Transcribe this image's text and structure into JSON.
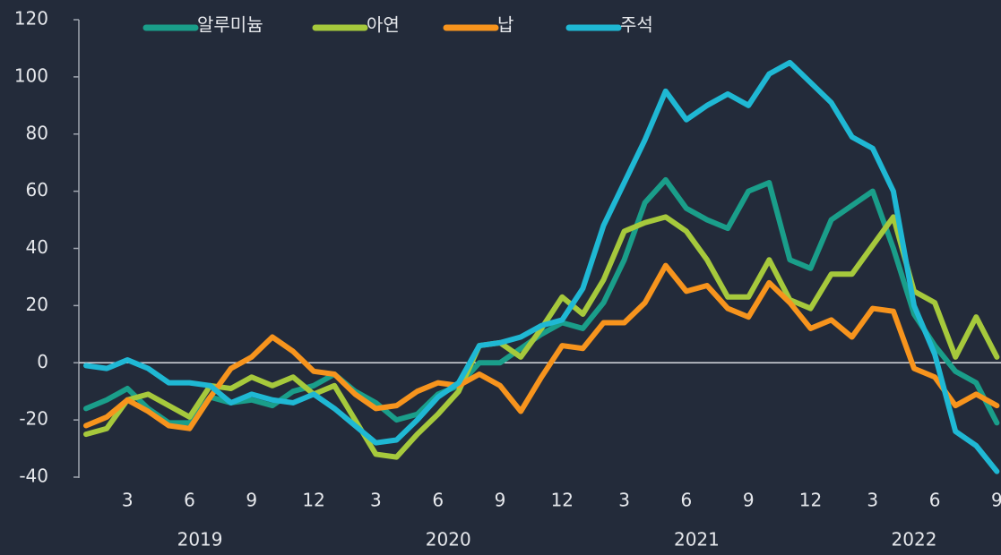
{
  "chart_data": {
    "type": "line",
    "categories": [
      null,
      null,
      "3",
      null,
      null,
      "6",
      null,
      null,
      "9",
      null,
      null,
      "12",
      null,
      null,
      "3",
      null,
      null,
      "6",
      null,
      null,
      "9",
      null,
      null,
      "12",
      null,
      null,
      "3",
      null,
      null,
      "6",
      null,
      null,
      "9",
      null,
      null,
      "12",
      null,
      null,
      "3",
      null,
      null,
      "6",
      null,
      null,
      "9"
    ],
    "x_groups": [
      "2019",
      "2020",
      "2021",
      "2022"
    ],
    "series": [
      {
        "name": "알루미늄",
        "color": "#1a9e8a",
        "values": [
          -16,
          -13,
          -9,
          -16,
          -21,
          -21,
          -12,
          -14,
          -13,
          -15,
          -10,
          -8,
          -4,
          -10,
          -14,
          -20,
          -18,
          -11,
          -8,
          0,
          0,
          5,
          10,
          14,
          12,
          21,
          36,
          56,
          64,
          54,
          50,
          47,
          60,
          63,
          36,
          33,
          50,
          55,
          60,
          40,
          17,
          6,
          -3,
          -7,
          -21
        ]
      },
      {
        "name": "아연",
        "color": "#a6c93c",
        "values": [
          -25,
          -23,
          -13,
          -11,
          -15,
          -19,
          -8,
          -9,
          -5,
          -8,
          -5,
          -11,
          -8,
          -20,
          -32,
          -33,
          -25,
          -18,
          -10,
          6,
          7,
          2,
          12,
          23,
          17,
          29,
          46,
          49,
          51,
          46,
          36,
          23,
          23,
          36,
          22,
          19,
          31,
          31,
          41,
          51,
          25,
          21,
          2,
          16,
          2
        ]
      },
      {
        "name": "납",
        "color": "#f7941d",
        "values": [
          -22,
          -19,
          -13,
          -17,
          -22,
          -23,
          -12,
          -2,
          2,
          9,
          4,
          -3,
          -4,
          -11,
          -16,
          -15,
          -10,
          -7,
          -8,
          -4,
          -8,
          -17,
          -5,
          6,
          5,
          14,
          14,
          21,
          34,
          25,
          27,
          19,
          16,
          28,
          21,
          12,
          15,
          9,
          19,
          18,
          -2,
          -5,
          -15,
          -11,
          -15
        ]
      },
      {
        "name": "주석",
        "color": "#1fb8d4",
        "values": [
          -1,
          -2,
          1,
          -2,
          -7,
          -7,
          -8,
          -14,
          -11,
          -13,
          -14,
          -11,
          -16,
          -22,
          -28,
          -27,
          -20,
          -12,
          -7,
          6,
          7,
          9,
          13,
          15,
          26,
          48,
          63,
          78,
          95,
          85,
          90,
          94,
          90,
          101,
          105,
          98,
          91,
          79,
          75,
          60,
          20,
          3,
          -24,
          -29,
          -38
        ]
      }
    ],
    "ylim": [
      -40,
      120
    ],
    "yticks": [
      -40,
      -20,
      0,
      20,
      40,
      60,
      80,
      100,
      120
    ]
  }
}
